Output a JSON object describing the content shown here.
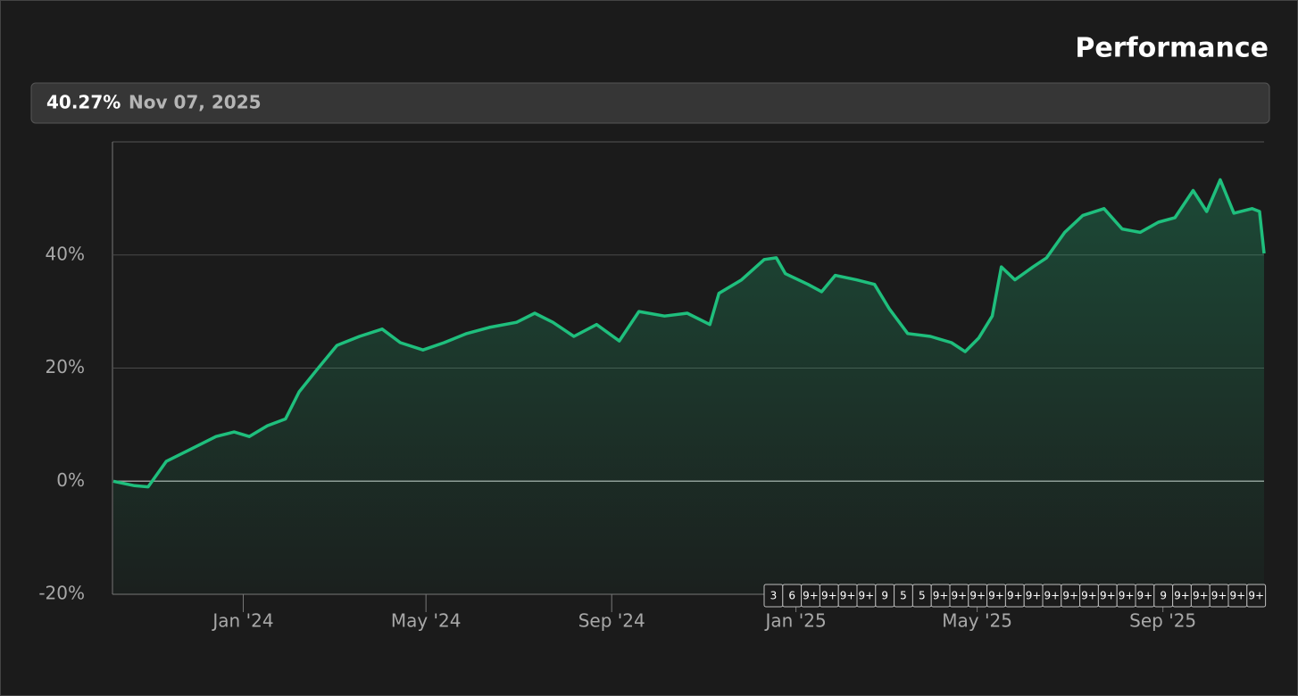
{
  "chart_data": {
    "type": "line",
    "title": "Performance",
    "readout_value": "40.27%",
    "readout_date": "Nov 07, 2025",
    "color": "#1fbf7d",
    "x": [
      "2023-10-07",
      "2023-10-21",
      "2023-10-30",
      "2023-11-11",
      "2023-11-26",
      "2023-12-14",
      "2023-12-26",
      "2024-01-05",
      "2024-01-17",
      "2024-01-29",
      "2024-02-07",
      "2024-02-19",
      "2024-03-03",
      "2024-03-18",
      "2024-04-02",
      "2024-04-14",
      "2024-04-29",
      "2024-05-13",
      "2024-05-28",
      "2024-06-12",
      "2024-06-30",
      "2024-07-12",
      "2024-07-24",
      "2024-08-07",
      "2024-08-22",
      "2024-09-06",
      "2024-09-19",
      "2024-10-06",
      "2024-10-21",
      "2024-11-05",
      "2024-11-11",
      "2024-11-26",
      "2024-12-11",
      "2024-12-19",
      "2024-12-25",
      "2025-01-09",
      "2025-01-18",
      "2025-01-27",
      "2025-02-10",
      "2025-02-22",
      "2025-03-04",
      "2025-03-16",
      "2025-03-31",
      "2025-04-14",
      "2025-04-23",
      "2025-05-02",
      "2025-05-11",
      "2025-05-17",
      "2025-05-26",
      "2025-06-07",
      "2025-06-16",
      "2025-06-28",
      "2025-07-10",
      "2025-07-24",
      "2025-08-05",
      "2025-08-17",
      "2025-08-29",
      "2025-09-09",
      "2025-09-21",
      "2025-09-30",
      "2025-10-09",
      "2025-10-18",
      "2025-10-30",
      "2025-11-04",
      "2025-11-07"
    ],
    "values": [
      0,
      -0.8,
      -1,
      3.5,
      5.5,
      7.9,
      8.7,
      7.9,
      9.8,
      11,
      15.8,
      19.8,
      24,
      25.6,
      26.9,
      24.5,
      23.2,
      24.5,
      26.1,
      27.2,
      28.1,
      29.7,
      28.1,
      25.6,
      27.7,
      24.8,
      30,
      29.2,
      29.7,
      27.7,
      33.2,
      35.6,
      39.2,
      39.5,
      36.7,
      34.8,
      33.5,
      36.4,
      35.6,
      34.8,
      30.4,
      26.1,
      25.6,
      24.5,
      22.9,
      25.3,
      29.2,
      37.9,
      35.6,
      37.9,
      39.5,
      44,
      47,
      48.2,
      44.6,
      44,
      45.8,
      46.6,
      51.4,
      47.7,
      53.3,
      47.4,
      48.2,
      47.7,
      40.27
    ],
    "xlim": [
      "2023-10-07",
      "2025-11-07"
    ],
    "xticks": [
      {
        "value": "2024-01-01",
        "label": "Jan '24"
      },
      {
        "value": "2024-05-01",
        "label": "May '24"
      },
      {
        "value": "2024-09-01",
        "label": "Sep '24"
      },
      {
        "value": "2025-01-01",
        "label": "Jan '25"
      },
      {
        "value": "2025-05-01",
        "label": "May '25"
      },
      {
        "value": "2025-09-01",
        "label": "Sep '25"
      }
    ],
    "ylim": [
      -20,
      60
    ],
    "yticks": [
      {
        "value": -20,
        "label": "-20%"
      },
      {
        "value": 0,
        "label": "0%"
      },
      {
        "value": 20,
        "label": "20%"
      },
      {
        "value": 40,
        "label": "40%"
      }
    ],
    "grid": true,
    "event_markers": [
      "3",
      "6",
      "9+",
      "9+",
      "9+",
      "9+",
      "9",
      "5",
      "5",
      "9+",
      "9+",
      "9+",
      "9+",
      "9+",
      "9+",
      "9+",
      "9+",
      "9+",
      "9+",
      "9+",
      "9+",
      "9",
      "9+",
      "9+",
      "9+",
      "9+",
      "9+"
    ]
  }
}
